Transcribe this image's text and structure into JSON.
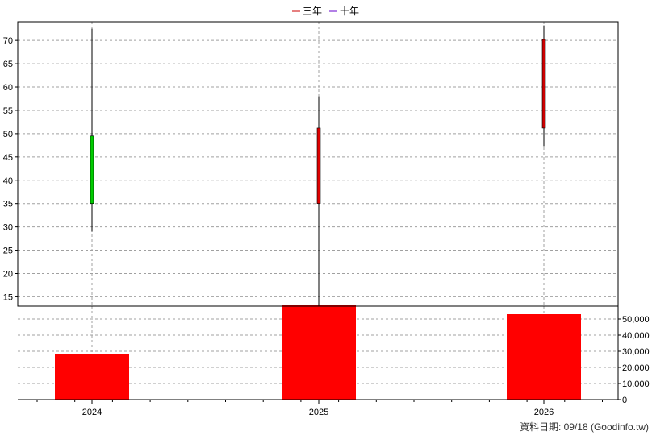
{
  "chart_data": {
    "type": "candlestick+bar",
    "legend": [
      {
        "label": "三年",
        "color": "#cc0000"
      },
      {
        "label": "十年",
        "color": "#6600cc"
      }
    ],
    "categories": [
      "2024",
      "2025",
      "2026"
    ],
    "price_panel": {
      "ylim": [
        13,
        74
      ],
      "yticks": [
        15,
        20,
        25,
        30,
        35,
        40,
        45,
        50,
        55,
        60,
        65,
        70
      ],
      "candles": [
        {
          "x": "2024",
          "open": 49.5,
          "close": 35,
          "high": 72.5,
          "low": 29,
          "color": "#00cc00"
        },
        {
          "x": "2025",
          "open": 35,
          "close": 51.2,
          "high": 58,
          "low": 13,
          "color": "#dd0000"
        },
        {
          "x": "2026",
          "open": 51.2,
          "close": 70.2,
          "high": 73.2,
          "low": 47.3,
          "color": "#cc0000"
        }
      ]
    },
    "volume_panel": {
      "ylim": [
        0,
        58000
      ],
      "yticks": [
        0,
        10000,
        20000,
        30000,
        40000,
        50000
      ],
      "ytick_labels": [
        "0",
        "10,000",
        "20,000",
        "30,000",
        "40,000",
        "50,000"
      ],
      "bars": [
        {
          "x": "2024",
          "value": 28000
        },
        {
          "x": "2025",
          "value": 59000
        },
        {
          "x": "2026",
          "value": 53000
        }
      ],
      "bar_color": "#ff0000"
    },
    "grid": true
  },
  "footer": "資料日期: 09/18  (Goodinfo.tw)"
}
